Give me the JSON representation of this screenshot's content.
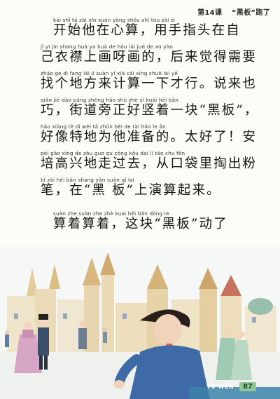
{
  "header": {
    "lesson": "第14课",
    "title": "“黑板”跑了"
  },
  "lines": [
    {
      "pinyin": "kāi  shǐ   tā   zài  xīn  suàn  yòng shǒu zhǐ tou  zài   zì",
      "hanzi": "开始他在心算，用手指头在自"
    },
    {
      "pinyin": "jǐ   yī   jīn shang huà ya  huà  de   hòu  lái  jué  de  xū  yào",
      "hanzi": "己衣襟上画呀画的，后来觉得需要"
    },
    {
      "pinyin": "zhǎo ge  dì  fang lái  jì  suàn yí  xià cái xíng  shuō lái  yě",
      "hanzi": "找个地方来计算一下才行。说来也"
    },
    {
      "pinyin": "qiǎo   jiē  dào páng zhèng hǎo shù zhe yí  kuài   hēi  bǎn",
      "hanzi": "巧，街道旁正好竖着一块“黑板”，"
    },
    {
      "pinyin": "hǎo xiàng tè  dì  wèi  tā  zhǔn bèi de    tài hǎo le    ān",
      "hanzi": "好像特地为他准备的。太好了！安"
    },
    {
      "pinyin": "péi gāo xìng de  zǒu guo qu    cóng kǒu dai  lǐ  tāo chu fěn",
      "hanzi": "培高兴地走过去，从口袋里掏出粉"
    },
    {
      "pinyin": "bǐ    zài   hēi  bǎn   shang yǎn suàn qǐ  lai",
      "hanzi": "笔，在“黑 板”上演算起来。"
    },
    {
      "pinyin": "suàn zhe suàn zhe     zhè kuài  hēi  bǎn  dòng le",
      "hanzi": "算着算着，这块“黑板”动了"
    }
  ],
  "footer": {
    "label": "YU WEN",
    "page_number": "87"
  },
  "colors": {
    "sky": "#f3f6f4",
    "building_main": "#e9d9b5",
    "roof_red": "#c2654e",
    "dome_green": "#8fb8a6",
    "coat_blue": "#3f6aa8",
    "dress_pink": "#d7a6c4",
    "footer_band": "#3b82a9",
    "page_badge": "#8ec89a"
  }
}
